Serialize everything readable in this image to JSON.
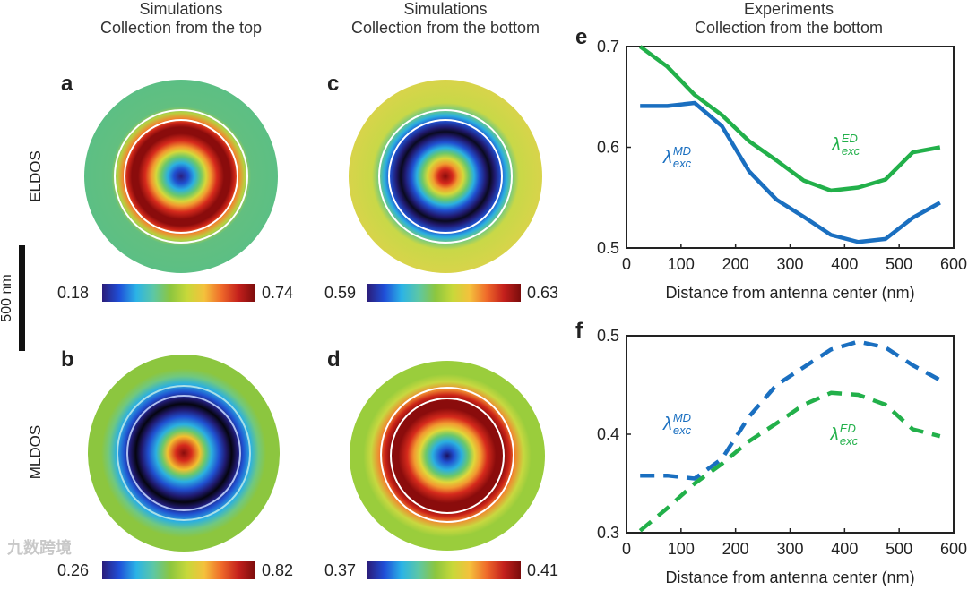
{
  "columns": [
    {
      "line1": "Simulations",
      "line2": "Collection from the top"
    },
    {
      "line1": "Simulations",
      "line2": "Collection from the bottom"
    },
    {
      "line1": "Experiments",
      "line2": "Collection from the bottom"
    }
  ],
  "rows": {
    "top": "ELDOS",
    "bottom": "MLDOS"
  },
  "scale_bar": "500 nm",
  "panels": {
    "a": {
      "letter": "a",
      "cmin": "0.18",
      "cmax": "0.74"
    },
    "b": {
      "letter": "b",
      "cmin": "0.26",
      "cmax": "0.82"
    },
    "c": {
      "letter": "c",
      "cmin": "0.59",
      "cmax": "0.63"
    },
    "d": {
      "letter": "d",
      "cmin": "0.37",
      "cmax": "0.41"
    }
  },
  "watermark": "九数跨境",
  "labels": {
    "md_sym": "λ",
    "md_sup": "MD",
    "md_sub": "exc",
    "ed_sym": "λ",
    "ed_sup": "ED",
    "ed_sub": "exc"
  },
  "colors": {
    "md": "#1a6fc0",
    "ed": "#22b04a"
  },
  "chart_data": [
    {
      "panel": "e",
      "type": "line",
      "letter": "e",
      "xlabel": "Distance from antenna center (nm)",
      "ylabel": "",
      "xlim": [
        0,
        600
      ],
      "ylim": [
        0.5,
        0.7
      ],
      "xticks": [
        0,
        100,
        200,
        300,
        400,
        500,
        600
      ],
      "yticks": [
        0.5,
        0.6,
        0.7
      ],
      "ytick_labels": [
        "0.5",
        "0.6",
        "0.7"
      ],
      "x": [
        25,
        75,
        125,
        175,
        225,
        275,
        325,
        375,
        425,
        475,
        525,
        575
      ],
      "series": [
        {
          "name": "λ_exc^MD",
          "style": "solid",
          "values": [
            0.641,
            0.641,
            0.644,
            0.621,
            0.576,
            0.548,
            0.531,
            0.513,
            0.506,
            0.509,
            0.53,
            0.545
          ]
        },
        {
          "name": "λ_exc^ED",
          "style": "solid",
          "values": [
            0.7,
            0.68,
            0.652,
            0.632,
            0.606,
            0.587,
            0.567,
            0.557,
            0.56,
            0.568,
            0.595,
            0.6
          ]
        }
      ]
    },
    {
      "panel": "f",
      "type": "line",
      "letter": "f",
      "xlabel": "Distance from antenna center (nm)",
      "ylabel": "",
      "xlim": [
        0,
        600
      ],
      "ylim": [
        0.3,
        0.5
      ],
      "xticks": [
        0,
        100,
        200,
        300,
        400,
        500,
        600
      ],
      "yticks": [
        0.3,
        0.4,
        0.5
      ],
      "ytick_labels": [
        "0.3",
        "0.4",
        "0.5"
      ],
      "x": [
        25,
        75,
        125,
        175,
        225,
        275,
        325,
        375,
        425,
        475,
        525,
        575
      ],
      "series": [
        {
          "name": "λ_exc^MD",
          "style": "dashed",
          "values": [
            0.358,
            0.358,
            0.355,
            0.375,
            0.418,
            0.45,
            0.468,
            0.486,
            0.494,
            0.488,
            0.47,
            0.455
          ]
        },
        {
          "name": "λ_exc^ED",
          "style": "dashed",
          "values": [
            0.302,
            0.325,
            0.35,
            0.37,
            0.393,
            0.411,
            0.43,
            0.442,
            0.44,
            0.43,
            0.405,
            0.398
          ]
        }
      ]
    }
  ]
}
